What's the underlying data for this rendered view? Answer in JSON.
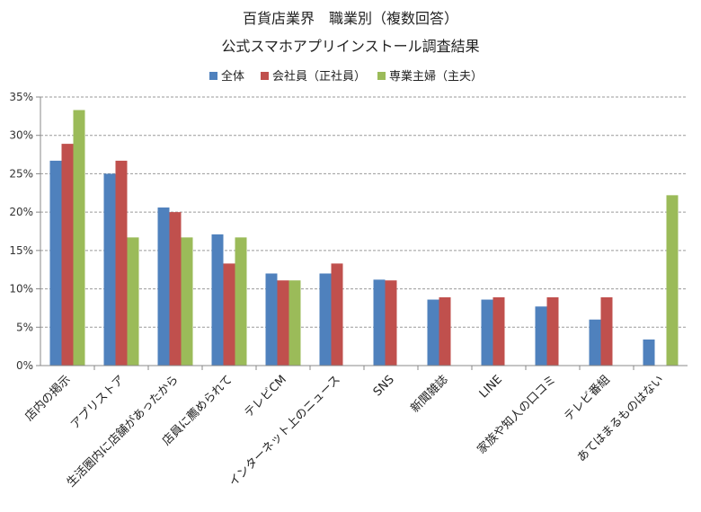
{
  "chart_data": {
    "type": "bar",
    "title": "百貨店業界　職業別（複数回答）",
    "subtitle": "公式スマホアプリインストール調査結果",
    "xlabel": "",
    "ylabel": "",
    "ylim": [
      0,
      35
    ],
    "y_ticks": [
      "0%",
      "5%",
      "10%",
      "15%",
      "20%",
      "25%",
      "30%",
      "35%"
    ],
    "grid": true,
    "legend_position": "top",
    "categories": [
      "店内の掲示",
      "アプリストア",
      "生活圏内に店舗があったから",
      "店員に薦められて",
      "テレビCM",
      "インターネット上のニュース",
      "SNS",
      "新聞雑誌",
      "LINE",
      "家族や知人の口コミ",
      "テレビ番組",
      "あてはまるものはない"
    ],
    "series": [
      {
        "name": "全体",
        "color": "#4f81bd",
        "values": [
          26.7,
          25.0,
          20.6,
          17.1,
          12.0,
          12.0,
          11.2,
          8.6,
          8.6,
          7.7,
          6.0,
          3.4
        ]
      },
      {
        "name": "会社員（正社員）",
        "color": "#c0504d",
        "values": [
          28.9,
          26.7,
          20.0,
          13.3,
          11.1,
          13.3,
          11.1,
          8.9,
          8.9,
          8.9,
          8.9,
          0
        ]
      },
      {
        "name": "専業主婦（主夫）",
        "color": "#9bbb59",
        "values": [
          33.3,
          16.7,
          16.7,
          16.7,
          11.1,
          0,
          0,
          0,
          0,
          0,
          0,
          22.2
        ]
      }
    ]
  }
}
